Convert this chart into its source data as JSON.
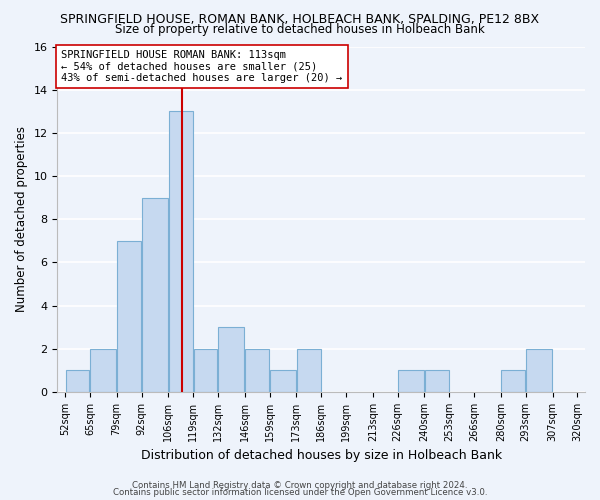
{
  "title": "SPRINGFIELD HOUSE, ROMAN BANK, HOLBEACH BANK, SPALDING, PE12 8BX",
  "subtitle": "Size of property relative to detached houses in Holbeach Bank",
  "xlabel": "Distribution of detached houses by size in Holbeach Bank",
  "ylabel": "Number of detached properties",
  "bin_edges": [
    52,
    65,
    79,
    92,
    106,
    119,
    132,
    146,
    159,
    173,
    186,
    199,
    213,
    226,
    240,
    253,
    266,
    280,
    293,
    307,
    320
  ],
  "bin_labels": [
    "52sqm",
    "65sqm",
    "79sqm",
    "92sqm",
    "106sqm",
    "119sqm",
    "132sqm",
    "146sqm",
    "159sqm",
    "173sqm",
    "186sqm",
    "199sqm",
    "213sqm",
    "226sqm",
    "240sqm",
    "253sqm",
    "266sqm",
    "280sqm",
    "293sqm",
    "307sqm",
    "320sqm"
  ],
  "counts": [
    1,
    2,
    7,
    9,
    13,
    2,
    3,
    2,
    1,
    2,
    0,
    0,
    0,
    1,
    1,
    0,
    0,
    1,
    2,
    0
  ],
  "bar_color": "#c6d9f0",
  "bar_edge_color": "#7bafd4",
  "marker_value": 113,
  "marker_color": "#cc0000",
  "annotation_title": "SPRINGFIELD HOUSE ROMAN BANK: 113sqm",
  "annotation_line1": "← 54% of detached houses are smaller (25)",
  "annotation_line2": "43% of semi-detached houses are larger (20) →",
  "ylim": [
    0,
    16
  ],
  "yticks": [
    0,
    2,
    4,
    6,
    8,
    10,
    12,
    14,
    16
  ],
  "footer1": "Contains HM Land Registry data © Crown copyright and database right 2024.",
  "footer2": "Contains public sector information licensed under the Open Government Licence v3.0.",
  "bg_color": "#eef3fb",
  "grid_color": "#ffffff"
}
